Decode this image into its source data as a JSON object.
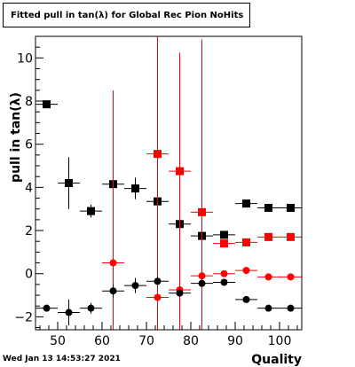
{
  "title": "Fitted pull in tan(λ) for Global Rec Pion NoHits",
  "timestamp": "Wed Jan 13 14:53:27 2021",
  "chart_data": {
    "type": "scatter",
    "xlabel": "Quality",
    "ylabel": "pull in tan(λ)",
    "xlim": [
      45,
      105
    ],
    "ylim": [
      -2.6,
      11
    ],
    "xticks": [
      50,
      60,
      70,
      80,
      90,
      100
    ],
    "yticks": [
      -2,
      0,
      2,
      4,
      6,
      8,
      10
    ],
    "grid": false,
    "series": [
      {
        "marker": "square",
        "color": "#000000",
        "points": [
          {
            "x": 47.5,
            "y": 7.85,
            "xerr": 2.5,
            "yerr": 0.1
          },
          {
            "x": 52.5,
            "y": 4.2,
            "xerr": 2.5,
            "yerr": 1.2
          },
          {
            "x": 57.5,
            "y": 2.9,
            "xerr": 2.5,
            "yerr": 0.3
          },
          {
            "x": 62.5,
            "y": 4.15,
            "xerr": 2.5,
            "yerr": 0.25
          },
          {
            "x": 67.5,
            "y": 3.95,
            "xerr": 2.5,
            "yerr": 0.5
          },
          {
            "x": 72.5,
            "y": 3.35,
            "xerr": 2.5,
            "yerr": 0.25
          },
          {
            "x": 77.5,
            "y": 2.3,
            "xerr": 2.5,
            "yerr": 0.15
          },
          {
            "x": 82.5,
            "y": 1.75,
            "xerr": 2.5,
            "yerr": 0.15
          },
          {
            "x": 87.5,
            "y": 1.8,
            "xerr": 2.5,
            "yerr": 0.1
          },
          {
            "x": 92.5,
            "y": 3.25,
            "xerr": 2.5,
            "yerr": 0.1
          },
          {
            "x": 97.5,
            "y": 3.05,
            "xerr": 2.5,
            "yerr": 0.1
          },
          {
            "x": 102.5,
            "y": 3.05,
            "xerr": 2.5,
            "yerr": 0.1
          }
        ]
      },
      {
        "marker": "square",
        "color": "#ff0000",
        "points": [
          {
            "x": 72.5,
            "y": 5.55,
            "xerr": 2.5,
            "yerr": 8.0
          },
          {
            "x": 77.5,
            "y": 4.75,
            "xerr": 2.5,
            "yerr": 5.5
          },
          {
            "x": 82.5,
            "y": 2.85,
            "xerr": 2.5,
            "yerr": 8.0
          },
          {
            "x": 87.5,
            "y": 1.4,
            "xerr": 2.5,
            "yerr": 0.1
          },
          {
            "x": 92.5,
            "y": 1.45,
            "xerr": 2.5,
            "yerr": 0.1
          },
          {
            "x": 97.5,
            "y": 1.7,
            "xerr": 2.5,
            "yerr": 0.1
          },
          {
            "x": 102.5,
            "y": 1.7,
            "xerr": 2.5,
            "yerr": 0.1
          }
        ]
      },
      {
        "marker": "circle",
        "color": "#ff0000",
        "points": [
          {
            "x": 62.5,
            "y": 0.5,
            "xerr": 2.5,
            "yerr": 8.0
          },
          {
            "x": 72.5,
            "y": -1.1,
            "xerr": 2.5,
            "yerr": 7.0
          },
          {
            "x": 77.5,
            "y": -0.75,
            "xerr": 2.5,
            "yerr": 3.0
          },
          {
            "x": 82.5,
            "y": -0.1,
            "xerr": 2.5,
            "yerr": 3.0
          },
          {
            "x": 87.5,
            "y": 0.0,
            "xerr": 2.5,
            "yerr": 0.1
          },
          {
            "x": 92.5,
            "y": 0.15,
            "xerr": 2.5,
            "yerr": 0.1
          },
          {
            "x": 97.5,
            "y": -0.15,
            "xerr": 2.5,
            "yerr": 0.1
          },
          {
            "x": 102.5,
            "y": -0.15,
            "xerr": 2.5,
            "yerr": 0.1
          }
        ]
      },
      {
        "marker": "circle",
        "color": "#000000",
        "points": [
          {
            "x": 47.5,
            "y": -1.6,
            "xerr": 2.5,
            "yerr": 0.1
          },
          {
            "x": 52.5,
            "y": -1.8,
            "xerr": 2.5,
            "yerr": 0.6
          },
          {
            "x": 57.5,
            "y": -1.6,
            "xerr": 2.5,
            "yerr": 0.25
          },
          {
            "x": 62.5,
            "y": -0.8,
            "xerr": 2.5,
            "yerr": 0.3
          },
          {
            "x": 67.5,
            "y": -0.55,
            "xerr": 2.5,
            "yerr": 0.35
          },
          {
            "x": 72.5,
            "y": -0.35,
            "xerr": 2.5,
            "yerr": 0.2
          },
          {
            "x": 77.5,
            "y": -0.9,
            "xerr": 2.5,
            "yerr": 0.15
          },
          {
            "x": 82.5,
            "y": -0.45,
            "xerr": 2.5,
            "yerr": 0.15
          },
          {
            "x": 87.5,
            "y": -0.4,
            "xerr": 2.5,
            "yerr": 0.1
          },
          {
            "x": 92.5,
            "y": -1.2,
            "xerr": 2.5,
            "yerr": 0.1
          },
          {
            "x": 97.5,
            "y": -1.6,
            "xerr": 2.5,
            "yerr": 0.1
          },
          {
            "x": 102.5,
            "y": -1.6,
            "xerr": 2.5,
            "yerr": 0.1
          }
        ]
      }
    ]
  }
}
